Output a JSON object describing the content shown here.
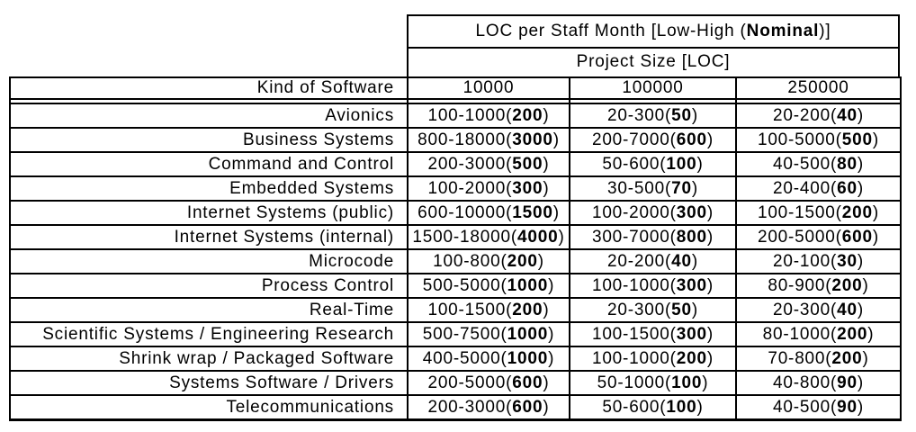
{
  "header": {
    "title_prefix": "LOC per Staff Month [Low-High (",
    "title_bold": "Nominal",
    "title_suffix": ")]",
    "subtitle": "Project Size [LOC]",
    "corner": "Kind of Software",
    "sizes": [
      "10000",
      "100000",
      "250000"
    ]
  },
  "rows": [
    {
      "label": "Avionics",
      "cells": [
        {
          "prefix": "100-1000(",
          "nominal": "200",
          "suffix": ")"
        },
        {
          "prefix": "20-300(",
          "nominal": "50",
          "suffix": ")"
        },
        {
          "prefix": "20-200(",
          "nominal": "40",
          "suffix": ")"
        }
      ]
    },
    {
      "label": "Business Systems",
      "cells": [
        {
          "prefix": "800-18000(",
          "nominal": "3000",
          "suffix": ")"
        },
        {
          "prefix": "200-7000(",
          "nominal": "600",
          "suffix": ")"
        },
        {
          "prefix": "100-5000(",
          "nominal": "500",
          "suffix": ")"
        }
      ]
    },
    {
      "label": "Command and Control",
      "cells": [
        {
          "prefix": "200-3000(",
          "nominal": "500",
          "suffix": ")"
        },
        {
          "prefix": "50-600(",
          "nominal": "100",
          "suffix": ")"
        },
        {
          "prefix": "40-500(",
          "nominal": "80",
          "suffix": ")"
        }
      ]
    },
    {
      "label": "Embedded Systems",
      "cells": [
        {
          "prefix": "100-2000(",
          "nominal": "300",
          "suffix": ")"
        },
        {
          "prefix": "30-500(",
          "nominal": "70",
          "suffix": ")"
        },
        {
          "prefix": "20-400(",
          "nominal": "60",
          "suffix": ")"
        }
      ]
    },
    {
      "label": "Internet Systems (public)",
      "cells": [
        {
          "prefix": "600-10000(",
          "nominal": "1500",
          "suffix": ")"
        },
        {
          "prefix": "100-2000(",
          "nominal": "300",
          "suffix": ")"
        },
        {
          "prefix": "100-1500(",
          "nominal": "200",
          "suffix": ")"
        }
      ]
    },
    {
      "label": "Internet Systems (internal)",
      "cells": [
        {
          "prefix": "1500-18000(",
          "nominal": "4000",
          "suffix": ")"
        },
        {
          "prefix": "300-7000(",
          "nominal": "800",
          "suffix": ")"
        },
        {
          "prefix": "200-5000(",
          "nominal": "600",
          "suffix": ")"
        }
      ]
    },
    {
      "label": "Microcode",
      "cells": [
        {
          "prefix": "100-800(",
          "nominal": "200",
          "suffix": ")"
        },
        {
          "prefix": "20-200(",
          "nominal": "40",
          "suffix": ")"
        },
        {
          "prefix": "20-100(",
          "nominal": "30",
          "suffix": ")"
        }
      ]
    },
    {
      "label": "Process Control",
      "cells": [
        {
          "prefix": "500-5000(",
          "nominal": "1000",
          "suffix": ")"
        },
        {
          "prefix": "100-1000(",
          "nominal": "300",
          "suffix": ")"
        },
        {
          "prefix": "80-900(",
          "nominal": "200",
          "suffix": ")"
        }
      ]
    },
    {
      "label": "Real-Time",
      "cells": [
        {
          "prefix": "100-1500(",
          "nominal": "200",
          "suffix": ")"
        },
        {
          "prefix": "20-300(",
          "nominal": "50",
          "suffix": ")"
        },
        {
          "prefix": "20-300(",
          "nominal": "40",
          "suffix": ")"
        }
      ]
    },
    {
      "label": "Scientific Systems / Engineering Research",
      "cells": [
        {
          "prefix": "500-7500(",
          "nominal": "1000",
          "suffix": ")"
        },
        {
          "prefix": "100-1500(",
          "nominal": "300",
          "suffix": ")"
        },
        {
          "prefix": "80-1000(",
          "nominal": "200",
          "suffix": ")"
        }
      ]
    },
    {
      "label": "Shrink wrap / Packaged Software",
      "cells": [
        {
          "prefix": "400-5000(",
          "nominal": "1000",
          "suffix": ")"
        },
        {
          "prefix": "100-1000(",
          "nominal": "200",
          "suffix": ")"
        },
        {
          "prefix": "70-800(",
          "nominal": "200",
          "suffix": ")"
        }
      ]
    },
    {
      "label": "Systems Software / Drivers",
      "cells": [
        {
          "prefix": "200-5000(",
          "nominal": "600",
          "suffix": ")"
        },
        {
          "prefix": "50-1000(",
          "nominal": "100",
          "suffix": ")"
        },
        {
          "prefix": "40-800(",
          "nominal": "90",
          "suffix": ")"
        }
      ]
    },
    {
      "label": "Telecommunications",
      "cells": [
        {
          "prefix": "200-3000(",
          "nominal": "600",
          "suffix": ")"
        },
        {
          "prefix": "50-600(",
          "nominal": "100",
          "suffix": ")"
        },
        {
          "prefix": "40-500(",
          "nominal": "90",
          "suffix": ")"
        }
      ]
    }
  ]
}
